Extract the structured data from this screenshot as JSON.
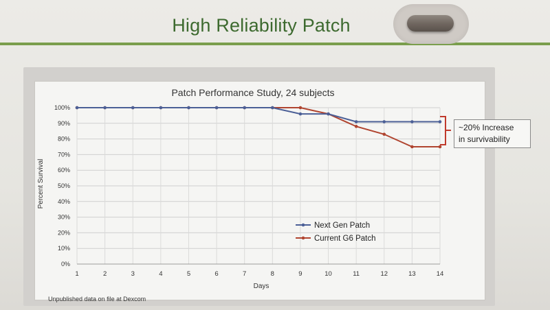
{
  "slide": {
    "title": "High Reliability Patch",
    "footnote": "Unpublished data on file at Dexcom",
    "annotation_line1": "~20% Increase",
    "annotation_line2": "in survivability"
  },
  "chart_data": {
    "type": "line",
    "title": "Patch Performance Study, 24 subjects",
    "xlabel": "Days",
    "ylabel": "Percent Survival",
    "x": [
      1,
      2,
      3,
      4,
      5,
      6,
      7,
      8,
      9,
      10,
      11,
      12,
      13,
      14
    ],
    "ylim": [
      0,
      100
    ],
    "yticks": [
      "0%",
      "10%",
      "20%",
      "30%",
      "40%",
      "50%",
      "60%",
      "70%",
      "80%",
      "90%",
      "100%"
    ],
    "grid": true,
    "legend_position": "bottom-right",
    "series": [
      {
        "name": "Next Gen Patch",
        "color": "#4b5f96",
        "x": [
          1,
          2,
          3,
          4,
          5,
          6,
          7,
          8,
          9,
          10,
          11,
          12,
          13,
          14
        ],
        "values": [
          100,
          100,
          100,
          100,
          100,
          100,
          100,
          100,
          96,
          96,
          91,
          91,
          91,
          91
        ]
      },
      {
        "name": "Current G6 Patch",
        "color": "#b0442f",
        "x": [
          1,
          2,
          3,
          4,
          5,
          6,
          7,
          8,
          9,
          10,
          11,
          12,
          13,
          14
        ],
        "values": [
          100,
          100,
          100,
          100,
          100,
          100,
          100,
          100,
          100,
          96,
          88,
          83,
          75,
          75
        ]
      }
    ]
  }
}
